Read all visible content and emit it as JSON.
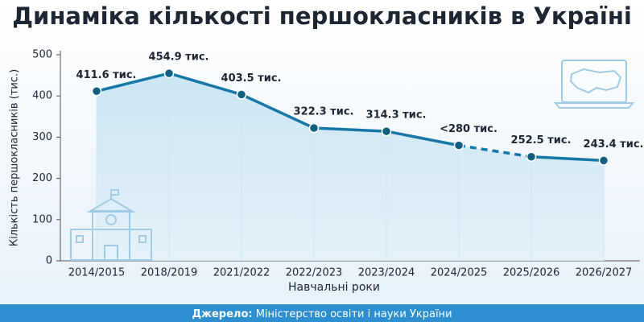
{
  "chart_data": {
    "type": "line",
    "title": "Динаміка кількості першокласників в Україні",
    "y_label": "Кількість першокласників (тис.)",
    "x_label": "Навчальні роки",
    "categories": [
      "2014/2015",
      "2018/2019",
      "2021/2022",
      "2022/2023",
      "2023/2024",
      "2024/2025",
      "2025/2026",
      "2026/2027"
    ],
    "values": [
      411.6,
      454.9,
      403.5,
      322.3,
      314.3,
      280,
      252.5,
      243.4
    ],
    "value_labels": [
      "411.6 тис.",
      "454.9 тис.",
      "403.5 тис.",
      "322.3 тис.",
      "314.3 тис.",
      "<280 тис.",
      "252.5 тис.",
      "243.4 тис."
    ],
    "color": "#1778a8",
    "marker_color": "#12607f",
    "dashed_segments": [
      [
        5,
        6
      ]
    ],
    "ylim": [
      0,
      500
    ],
    "yticks": [
      0,
      100,
      200,
      300,
      400,
      500
    ],
    "source_label": "Джерело:",
    "source": "Міністерство освіти і науки України"
  }
}
